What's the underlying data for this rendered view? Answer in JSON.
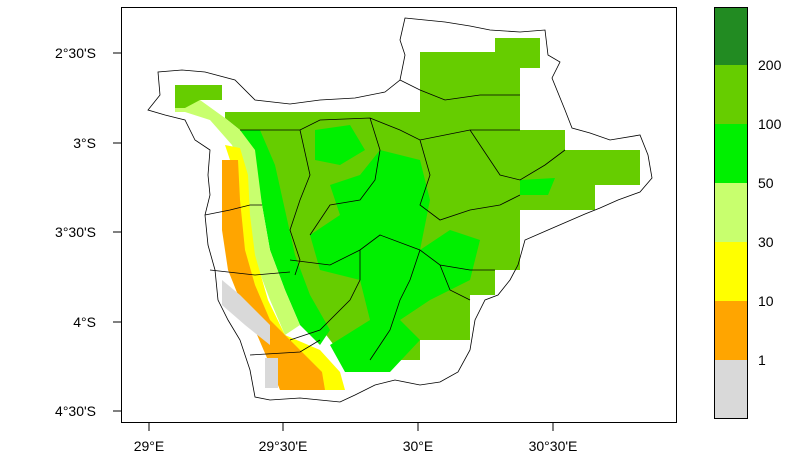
{
  "map": {
    "axes": {
      "x_ticks": [
        "29°E",
        "29°30'E",
        "30°E",
        "30°30'E"
      ],
      "y_ticks": [
        "2°30'S",
        "3°S",
        "3°30'S",
        "4°S",
        "4°30'S"
      ]
    },
    "legend": {
      "bins": [
        {
          "color": "#d9d9d9",
          "label": "1"
        },
        {
          "color": "#ffa500",
          "label": "10"
        },
        {
          "color": "#ffff00",
          "label": "30"
        },
        {
          "color": "#c8ff6e",
          "label": "50"
        },
        {
          "color": "#00f000",
          "label": "100"
        },
        {
          "color": "#66cd00",
          "label": "200"
        },
        {
          "color": "#228b22",
          "label": ""
        }
      ]
    },
    "colors": {
      "boundary": "#000000",
      "background": "#ffffff"
    }
  }
}
